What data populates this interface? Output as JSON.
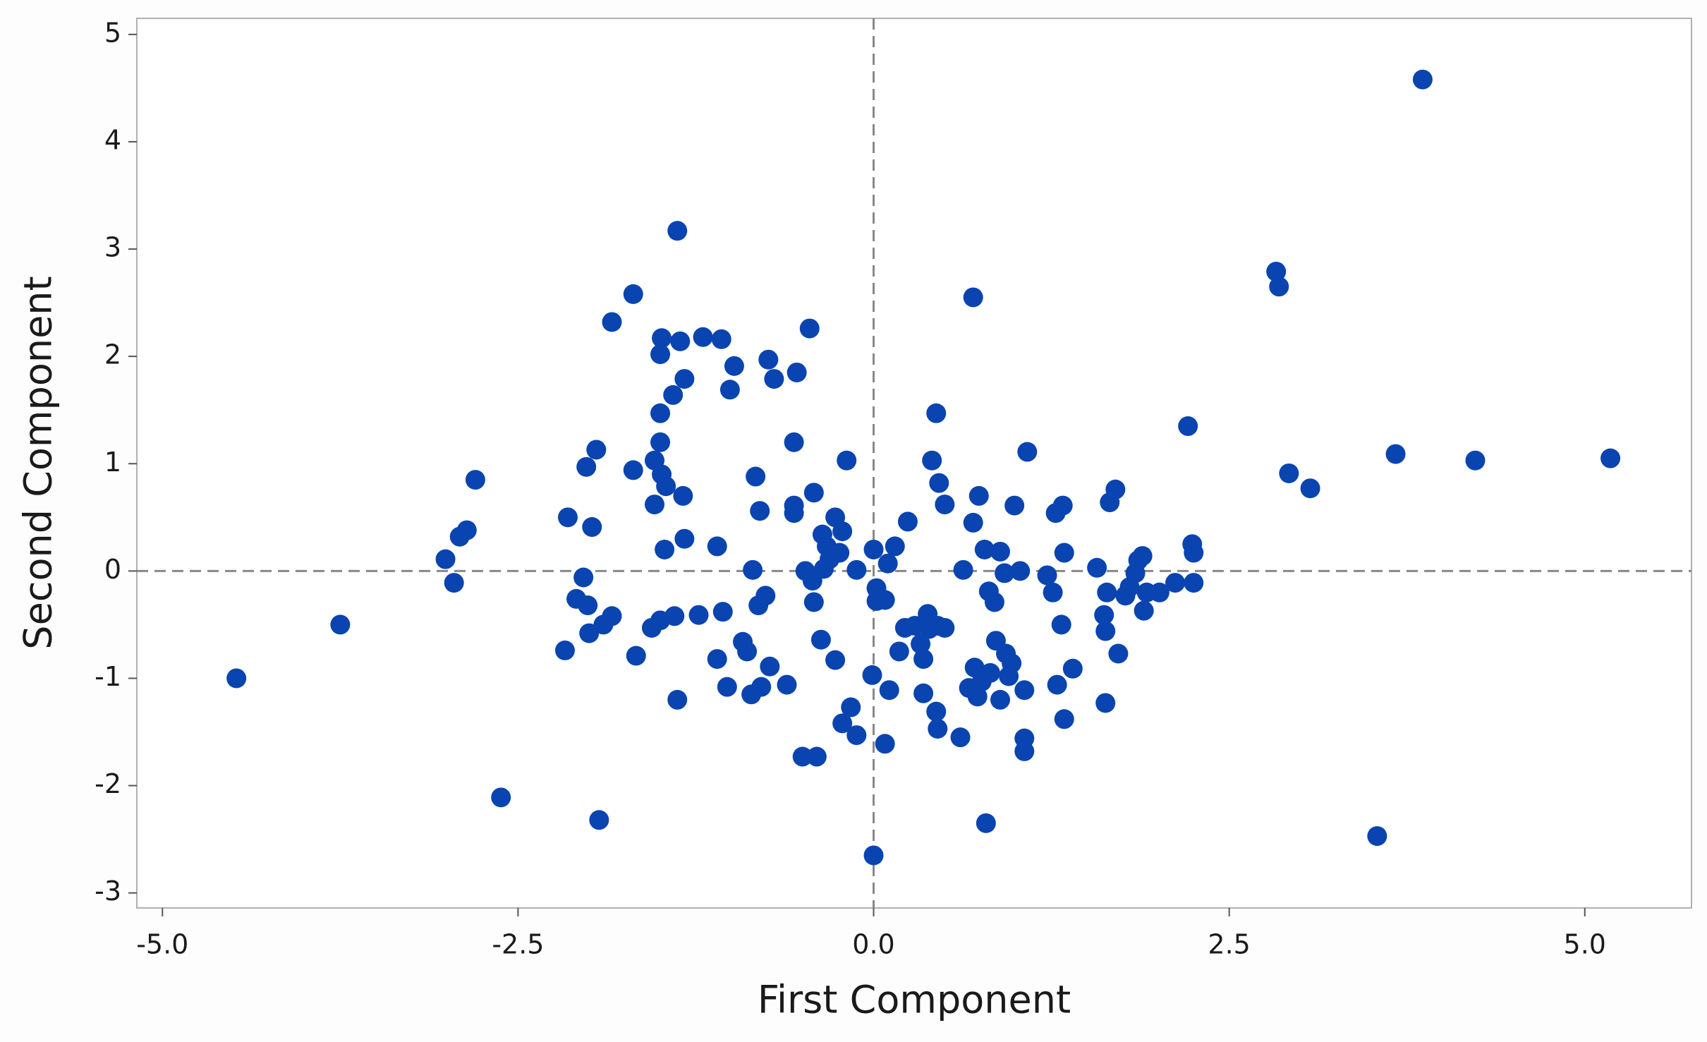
{
  "chart_data": {
    "type": "scatter",
    "x_label": "First Component",
    "y_label": "Second Component",
    "xlim": [
      -5.18,
      5.75
    ],
    "ylim": [
      -3.14,
      5.15
    ],
    "xticks": [
      {
        "value": -5,
        "label": "-5.0"
      },
      -2.5,
      {
        "value": 0,
        "label": "0.0"
      },
      2.5,
      {
        "value": 5,
        "label": "5.0"
      }
    ],
    "yticks": [
      -3,
      -2,
      -1,
      0,
      1,
      2,
      3,
      4,
      5
    ],
    "reference_lines": {
      "x": 0,
      "y": 0
    },
    "color": "#0a44b0",
    "x": [
      -4.48,
      -3.75,
      -3.01,
      -2.95,
      -2.91,
      -2.86,
      -2.8,
      -2.62,
      -2.17,
      -2.15,
      -2.09,
      -2.04,
      -2.02,
      -2.01,
      -1.98,
      -2.0,
      -1.95,
      -1.93,
      -1.9,
      -1.84,
      -1.84,
      -1.69,
      -1.69,
      -1.67,
      -1.56,
      -1.54,
      -1.54,
      -1.5,
      -1.5,
      -1.49,
      -1.5,
      -1.5,
      -1.49,
      -1.46,
      -1.47,
      -1.41,
      -1.4,
      -1.38,
      -1.38,
      -1.36,
      -1.34,
      -1.33,
      -1.33,
      -1.23,
      -1.2,
      -1.1,
      -1.1,
      -1.07,
      -1.06,
      -1.03,
      -1.01,
      -0.98,
      -0.92,
      -0.89,
      -0.86,
      -0.85,
      -0.83,
      -0.81,
      -0.8,
      -0.79,
      -0.76,
      -0.74,
      -0.73,
      -0.7,
      -0.61,
      -0.56,
      -0.56,
      -0.56,
      -0.54,
      -0.5,
      -0.48,
      -0.45,
      -0.43,
      -0.42,
      -0.42,
      -0.4,
      -0.37,
      -0.36,
      -0.35,
      -0.33,
      -0.31,
      -0.27,
      -0.27,
      -0.24,
      -0.22,
      -0.22,
      -0.16,
      -0.19,
      -0.12,
      -0.12,
      -0.01,
      0.0,
      0.0,
      0.02,
      0.02,
      0.08,
      0.08,
      0.11,
      0.1,
      0.15,
      0.18,
      0.22,
      0.24,
      0.29,
      0.33,
      0.35,
      0.35,
      0.38,
      0.39,
      0.41,
      0.44,
      0.45,
      0.44,
      0.45,
      0.46,
      0.5,
      0.5,
      0.61,
      0.63,
      0.67,
      0.7,
      0.7,
      0.71,
      0.73,
      0.74,
      0.76,
      0.78,
      0.79,
      0.81,
      0.82,
      0.85,
      0.86,
      0.89,
      0.89,
      0.92,
      0.93,
      0.95,
      0.97,
      0.99,
      1.03,
      1.06,
      1.06,
      1.06,
      1.08,
      1.22,
      1.26,
      1.28,
      1.29,
      1.32,
      1.33,
      1.34,
      1.34,
      1.4,
      1.57,
      1.62,
      1.63,
      1.63,
      1.64,
      1.66,
      1.7,
      1.72,
      1.77,
      1.8,
      1.84,
      1.86,
      1.89,
      1.9,
      1.92,
      2.01,
      2.12,
      2.21,
      2.24,
      2.25,
      2.25,
      2.83,
      2.85,
      2.92,
      3.07,
      3.54,
      3.67,
      3.86,
      4.23,
      5.18
    ],
    "values": [
      -1.0,
      -0.5,
      0.11,
      -0.11,
      0.32,
      0.38,
      0.85,
      -2.11,
      -0.74,
      0.5,
      -0.26,
      -0.06,
      0.97,
      -0.32,
      0.41,
      -0.58,
      1.13,
      -2.32,
      -0.5,
      2.32,
      -0.42,
      2.58,
      0.94,
      -0.79,
      -0.53,
      0.62,
      1.03,
      -0.46,
      2.02,
      2.17,
      1.47,
      1.2,
      0.9,
      0.79,
      0.2,
      1.64,
      -0.42,
      -1.2,
      3.17,
      2.14,
      0.7,
      1.79,
      0.3,
      -0.41,
      2.18,
      0.23,
      -0.82,
      2.16,
      -0.38,
      -1.08,
      1.69,
      1.91,
      -0.66,
      -0.75,
      -1.15,
      0.01,
      0.88,
      -0.32,
      0.56,
      -1.08,
      -0.23,
      1.97,
      -0.89,
      1.79,
      -1.06,
      1.2,
      0.54,
      0.61,
      1.85,
      -1.73,
      0.0,
      2.26,
      -0.09,
      0.73,
      -0.29,
      -1.73,
      -0.64,
      0.34,
      0.02,
      0.23,
      0.11,
      -0.83,
      0.5,
      0.17,
      0.37,
      -1.42,
      -1.27,
      1.03,
      0.01,
      -1.53,
      -0.97,
      -2.65,
      0.2,
      -0.16,
      -0.28,
      -0.27,
      -1.61,
      -1.11,
      0.07,
      0.23,
      -0.75,
      -0.53,
      0.46,
      -0.51,
      -0.68,
      -0.82,
      -1.14,
      -0.4,
      -0.54,
      1.03,
      1.47,
      -0.51,
      -1.31,
      -1.47,
      0.82,
      0.62,
      -0.53,
      -1.55,
      0.01,
      -1.09,
      0.45,
      2.55,
      -0.9,
      -1.17,
      0.7,
      -1.03,
      0.2,
      -2.35,
      -0.19,
      -0.95,
      -0.29,
      -0.65,
      0.18,
      -1.2,
      -0.02,
      -0.77,
      -0.98,
      -0.86,
      0.61,
      0.0,
      -1.11,
      -1.56,
      -1.68,
      1.11,
      -0.04,
      -0.2,
      0.54,
      -1.06,
      -0.5,
      0.61,
      0.17,
      -1.38,
      -0.91,
      0.03,
      -0.41,
      -0.56,
      -1.23,
      -0.2,
      0.64,
      0.76,
      -0.77,
      -0.23,
      -0.15,
      -0.02,
      0.1,
      0.14,
      -0.37,
      -0.2,
      -0.2,
      -0.11,
      1.35,
      0.25,
      0.17,
      -0.11,
      2.79,
      2.65,
      0.91,
      0.77,
      -2.47,
      1.09,
      4.58,
      1.03,
      1.05
    ]
  }
}
